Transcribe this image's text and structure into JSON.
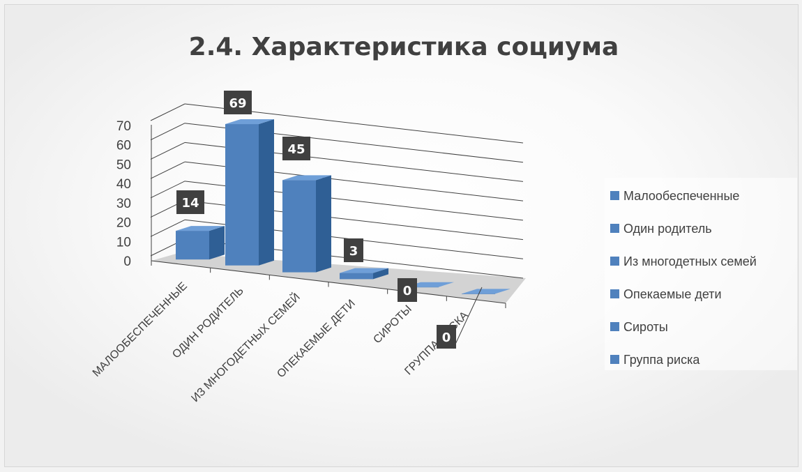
{
  "chart_data": {
    "type": "bar",
    "title": "2.4. Характеристика социума",
    "categories": [
      "МАЛООБЕСПЕЧЕННЫЕ",
      "ОДИН РОДИТЕЛЬ",
      "ИЗ МНОГОДЕТНЫХ СЕМЕЙ",
      "ОПЕКАЕМЫЕ ДЕТИ",
      "СИРОТЫ",
      "ГРУППА РИСКА"
    ],
    "legend": [
      "Малообеспеченные",
      "Один родитель",
      "Из многодетных семей",
      "Опекаемые дети",
      "Сироты",
      "Группа риска"
    ],
    "values": [
      14,
      69,
      45,
      3,
      0,
      0
    ],
    "yticks": [
      0,
      10,
      20,
      30,
      40,
      50,
      60,
      70
    ],
    "ylim": [
      0,
      70
    ],
    "grid": true,
    "legend_position": "right",
    "colors": {
      "bar_front": "#4f81bd",
      "bar_side": "#2f5f95",
      "bar_top": "#6f9fd8",
      "floor": "#d3d3d3",
      "label_bg": "#404040"
    }
  }
}
